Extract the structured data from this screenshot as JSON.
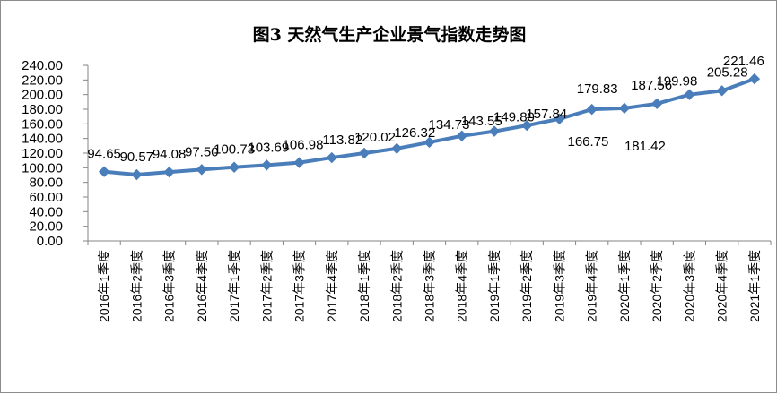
{
  "chart_data": {
    "type": "line",
    "title": "图3  天然气生产企业景气指数走势图",
    "categories": [
      "2016年1季度",
      "2016年2季度",
      "2016年3季度",
      "2016年4季度",
      "2017年1季度",
      "2017年2季度",
      "2017年3季度",
      "2017年4季度",
      "2018年1季度",
      "2018年2季度",
      "2018年3季度",
      "2018年4季度",
      "2019年1季度",
      "2019年2季度",
      "2019年3季度",
      "2019年4季度",
      "2020年1季度",
      "2020年2季度",
      "2020年3季度",
      "2020年4季度",
      "2021年1季度"
    ],
    "series": [
      {
        "values": [
          94.65,
          90.57,
          94.08,
          97.5,
          100.73,
          103.69,
          106.98,
          113.82,
          120.02,
          126.32,
          134.73,
          143.55,
          149.8,
          157.84,
          166.75,
          179.83,
          181.42,
          187.56,
          199.98,
          205.28,
          221.46
        ],
        "labels": [
          "94.65",
          "90.57",
          "94.08",
          "97.50",
          "100.73",
          "103.69",
          "106.98",
          "113.82",
          "120.02",
          "126.32",
          "134.73",
          "143.55",
          "149.80",
          "157.84",
          "166.75",
          "179.83",
          "181.42",
          "187.56",
          "199.98",
          "205.28",
          "221.46"
        ],
        "color": "#4a7ebb"
      }
    ],
    "ylim": [
      0,
      240
    ],
    "yticks": [
      "0.00",
      "20.00",
      "40.00",
      "60.00",
      "80.00",
      "100.00",
      "120.00",
      "140.00",
      "160.00",
      "180.00",
      "200.00",
      "220.00",
      "240.00"
    ],
    "grid": false,
    "legend": "none",
    "xlabel": "",
    "ylabel": ""
  }
}
